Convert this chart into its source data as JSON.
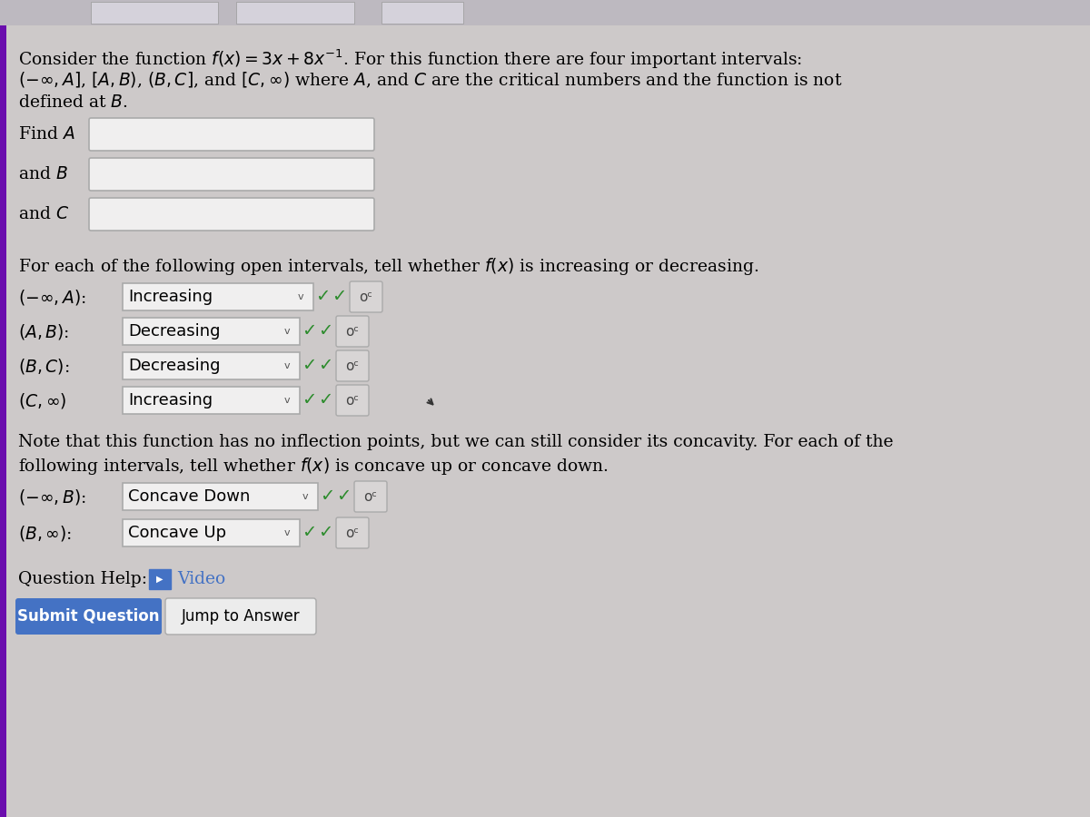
{
  "bg_color": "#cdc9c9",
  "left_bar_color": "#6a0dad",
  "input_box_color": "#f0efef",
  "input_box_border": "#aaaaaa",
  "dropdown_color": "#f0efef",
  "dropdown_border": "#aaaaaa",
  "sigma_box_color": "#d8d5d5",
  "sigma_box_border": "#aaaaaa",
  "text_color": "#000000",
  "checkmark_color": "#2d8c2d",
  "blue_color": "#4472c4",
  "submit_color": "#4472c4",
  "line1": "Consider the function $f(x) = 3x + 8x^{-1}$. For this function there are four important intervals:",
  "line2": "$(-\\infty, A]$, $[A, B)$, $(B, C]$, and $[C, \\infty)$ where $A$, and $C$ are the critical numbers and the function is not",
  "line3": "defined at $B$.",
  "find_A": "Find $A$",
  "and_B": "and $B$",
  "and_C": "and $C$",
  "open_intervals_q": "For each of the following open intervals, tell whether $f(x)$ is increasing or decreasing.",
  "i1_label": "$( - \\infty, A)$:",
  "i1_val": "Increasing",
  "i2_label": "$(A, B)$:",
  "i2_val": "Decreasing",
  "i3_label": "$(B, C)$:",
  "i3_val": "Decreasing",
  "i4_label": "$(C, \\infty)$",
  "i4_val": "Increasing",
  "conc_q1": "Note that this function has no inflection points, but we can still consider its concavity. For each of the",
  "conc_q2": "following intervals, tell whether $f(x)$ is concave up or concave down.",
  "c1_label": "$( - \\infty, B)$:",
  "c1_val": "Concave Down",
  "c2_label": "$(B, \\infty)$:",
  "c2_val": "Concave Up",
  "q_help": "Question Help:",
  "video": "Video",
  "submit": "Submit Question",
  "jump": "Jump to Answer",
  "fs": 13.5,
  "fs_small": 11
}
